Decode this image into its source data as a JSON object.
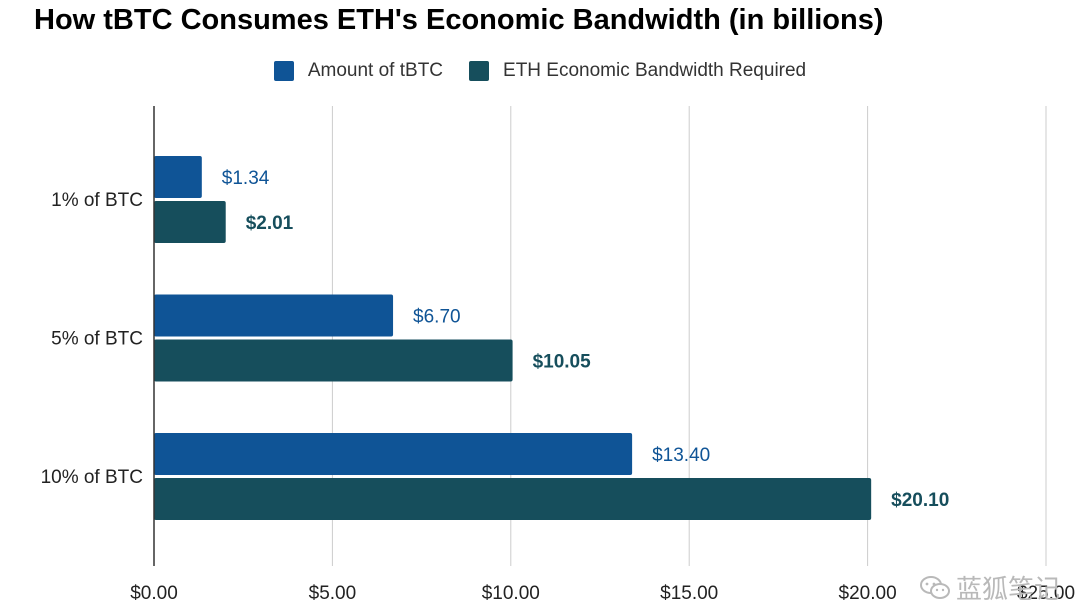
{
  "chart_data": {
    "type": "bar",
    "orientation": "horizontal",
    "title": "How tBTC Consumes ETH's Economic Bandwidth (in billions)",
    "categories": [
      "1% of BTC",
      "5% of BTC",
      "10% of BTC"
    ],
    "series": [
      {
        "name": "Amount of tBTC",
        "values": [
          1.34,
          6.7,
          13.4
        ],
        "labels": [
          "$1.34",
          "$6.70",
          "$13.40"
        ],
        "color": "#0f5496"
      },
      {
        "name": "ETH Economic Bandwidth Required",
        "values": [
          2.01,
          10.05,
          20.1
        ],
        "labels": [
          "$2.01",
          "$10.05",
          "$20.10"
        ],
        "color": "#164e5c"
      }
    ],
    "xlim": [
      0,
      25
    ],
    "xticks": [
      0,
      5,
      10,
      15,
      20,
      25
    ],
    "xtick_labels": [
      "$0.00",
      "$5.00",
      "$10.00",
      "$15.00",
      "$20.00",
      "$25.00"
    ],
    "grid": true,
    "legend_position": "top-center"
  },
  "watermark": {
    "text": "蓝狐笔记",
    "icon": "wechat-icon"
  }
}
